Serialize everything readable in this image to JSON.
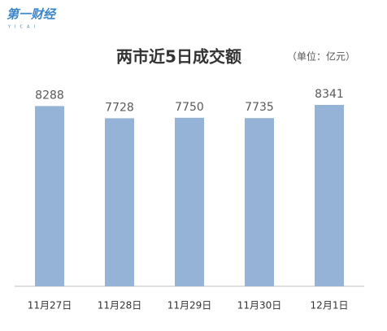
{
  "logo": {
    "text": "第一财经",
    "subtext": "YICAI"
  },
  "chart_data": {
    "type": "bar",
    "title": "两市近5日成交额",
    "subtitle": "（单位：亿元）",
    "categories": [
      "11月27日",
      "11月28日",
      "11月29日",
      "11月30日",
      "12月1日"
    ],
    "values": [
      8288,
      7728,
      7750,
      7735,
      8341
    ],
    "color": "#95b3d7"
  }
}
